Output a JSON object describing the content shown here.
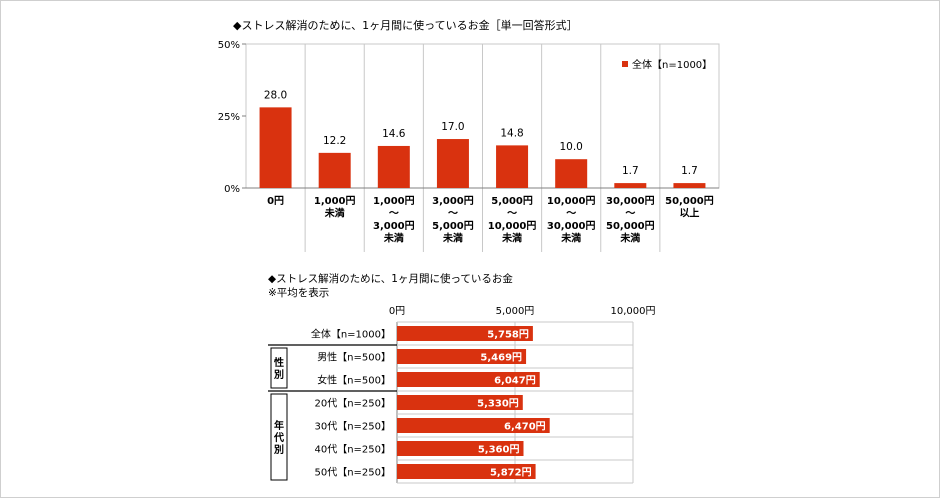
{
  "colors": {
    "bar": "#d9320f",
    "axis": "#808080",
    "grid": "#c8c8c8",
    "frame": "#cfcfcf"
  },
  "chart_data": [
    {
      "type": "bar",
      "title": "◆ストレス解消のために、1ヶ月間に使っているお金［単一回答形式］",
      "unit": "%",
      "ylim": [
        0,
        50
      ],
      "yticks": [
        "0%",
        "25%",
        "50%"
      ],
      "ytick_values": [
        0,
        25,
        50
      ],
      "legend_position": "top-right",
      "series": [
        {
          "name": "全体【n=1000】",
          "values": [
            28.0,
            12.2,
            14.6,
            17.0,
            14.8,
            10.0,
            1.7,
            1.7
          ],
          "labels": [
            "28.0",
            "12.2",
            "14.6",
            "17.0",
            "14.8",
            "10.0",
            "1.7",
            "1.7"
          ]
        }
      ],
      "categories": [
        [
          "0円"
        ],
        [
          "1,000円",
          "未満"
        ],
        [
          "1,000円",
          "～",
          "3,000円",
          "未満"
        ],
        [
          "3,000円",
          "～",
          "5,000円",
          "未満"
        ],
        [
          "5,000円",
          "～",
          "10,000円",
          "未満"
        ],
        [
          "10,000円",
          "～",
          "30,000円",
          "未満"
        ],
        [
          "30,000円",
          "～",
          "50,000円",
          "未満"
        ],
        [
          "50,000円",
          "以上"
        ]
      ]
    },
    {
      "type": "bar",
      "orientation": "horizontal",
      "title": "◆ストレス解消のために、1ヶ月間に使っているお金",
      "subtitle": "※平均を表示",
      "xlim": [
        0,
        10000
      ],
      "xticks": [
        "0円",
        "5,000円",
        "10,000円"
      ],
      "xtick_values": [
        0,
        5000,
        10000
      ],
      "groups": [
        {
          "label": "",
          "rows": [
            0
          ]
        },
        {
          "label": "性別",
          "rows": [
            1,
            2
          ]
        },
        {
          "label": "年代別",
          "rows": [
            3,
            4,
            5,
            6
          ]
        }
      ],
      "categories": [
        "全体【n=1000】",
        "男性【n=500】",
        "女性【n=500】",
        "20代【n=250】",
        "30代【n=250】",
        "40代【n=250】",
        "50代【n=250】"
      ],
      "values": [
        5758,
        5469,
        6047,
        5330,
        6470,
        5360,
        5872
      ],
      "labels": [
        "5,758円",
        "5,469円",
        "6,047円",
        "5,330円",
        "6,470円",
        "5,360円",
        "5,872円"
      ]
    }
  ]
}
